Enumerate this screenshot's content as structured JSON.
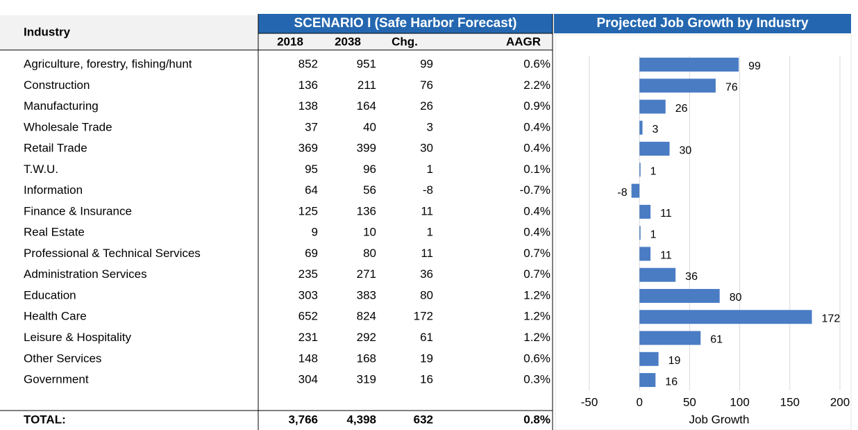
{
  "table": {
    "header": {
      "industry": "Industry",
      "scenario": "SCENARIO I (Safe Harbor Forecast)",
      "columns": [
        "2018",
        "2038",
        "Chg.",
        "AAGR"
      ]
    },
    "rows": [
      [
        "Agriculture, forestry, fishing/hunt",
        "852",
        "951",
        "99",
        "0.6%"
      ],
      [
        "Construction",
        "136",
        "211",
        "76",
        "2.2%"
      ],
      [
        "Manufacturing",
        "138",
        "164",
        "26",
        "0.9%"
      ],
      [
        "Wholesale Trade",
        "37",
        "40",
        "3",
        "0.4%"
      ],
      [
        "Retail Trade",
        "369",
        "399",
        "30",
        "0.4%"
      ],
      [
        "T.W.U.",
        "95",
        "96",
        "1",
        "0.1%"
      ],
      [
        "Information",
        "64",
        "56",
        "-8",
        "-0.7%"
      ],
      [
        "Finance & Insurance",
        "125",
        "136",
        "11",
        "0.4%"
      ],
      [
        "Real Estate",
        "9",
        "10",
        "1",
        "0.4%"
      ],
      [
        "Professional & Technical Services",
        "69",
        "80",
        "11",
        "0.7%"
      ],
      [
        "Administration Services",
        "235",
        "271",
        "36",
        "0.7%"
      ],
      [
        "Education",
        "303",
        "383",
        "80",
        "1.2%"
      ],
      [
        "Health Care",
        "652",
        "824",
        "172",
        "1.2%"
      ],
      [
        "Leisure & Hospitality",
        "231",
        "292",
        "61",
        "1.2%"
      ],
      [
        "Other Services",
        "148",
        "168",
        "19",
        "0.6%"
      ],
      [
        "Government",
        "304",
        "319",
        "16",
        "0.3%"
      ]
    ],
    "total": [
      "TOTAL:",
      "3,766",
      "4,398",
      "632",
      "0.8%"
    ]
  },
  "chart_data": {
    "type": "bar",
    "orientation": "horizontal",
    "title": "Projected Job Growth by Industry",
    "x_label": "Job Growth",
    "values": [
      99,
      76,
      26,
      3,
      30,
      1,
      -8,
      11,
      1,
      11,
      36,
      80,
      172,
      61,
      19,
      16
    ],
    "color": "#4a7cc4",
    "xlim": [
      -50,
      200
    ],
    "xticks": [
      -50,
      0,
      50,
      100,
      150,
      200
    ],
    "grid": true
  }
}
